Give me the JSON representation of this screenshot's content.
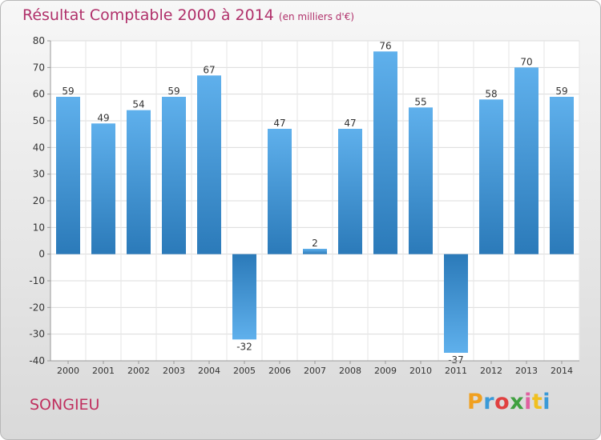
{
  "header": {
    "title": "Résultat Comptable 2000 à 2014",
    "subtitle": "(en milliers d'€)"
  },
  "footer": {
    "town": "SONGIEU",
    "logo_letters": [
      "P",
      "r",
      "o",
      "x",
      "i",
      "t",
      "i"
    ],
    "logo_colors": [
      "#f0a020",
      "#3a9ad8",
      "#e04040",
      "#40a040",
      "#e060a0",
      "#f0c020",
      "#3a9ad8"
    ]
  },
  "colors": {
    "bar_light": "#5fb0ec",
    "bar_dark": "#2b7ab9",
    "title": "#b0306a"
  },
  "chart_data": {
    "type": "bar",
    "categories": [
      "2000",
      "2001",
      "2002",
      "2003",
      "2004",
      "2005",
      "2006",
      "2007",
      "2008",
      "2009",
      "2010",
      "2011",
      "2012",
      "2013",
      "2014"
    ],
    "values": [
      59,
      49,
      54,
      59,
      67,
      -32,
      47,
      2,
      47,
      76,
      55,
      -37,
      58,
      70,
      59
    ],
    "ylim": [
      -40,
      80
    ],
    "yticks": [
      -40,
      -30,
      -20,
      -10,
      0,
      10,
      20,
      30,
      40,
      50,
      60,
      70,
      80
    ],
    "grid": true
  }
}
